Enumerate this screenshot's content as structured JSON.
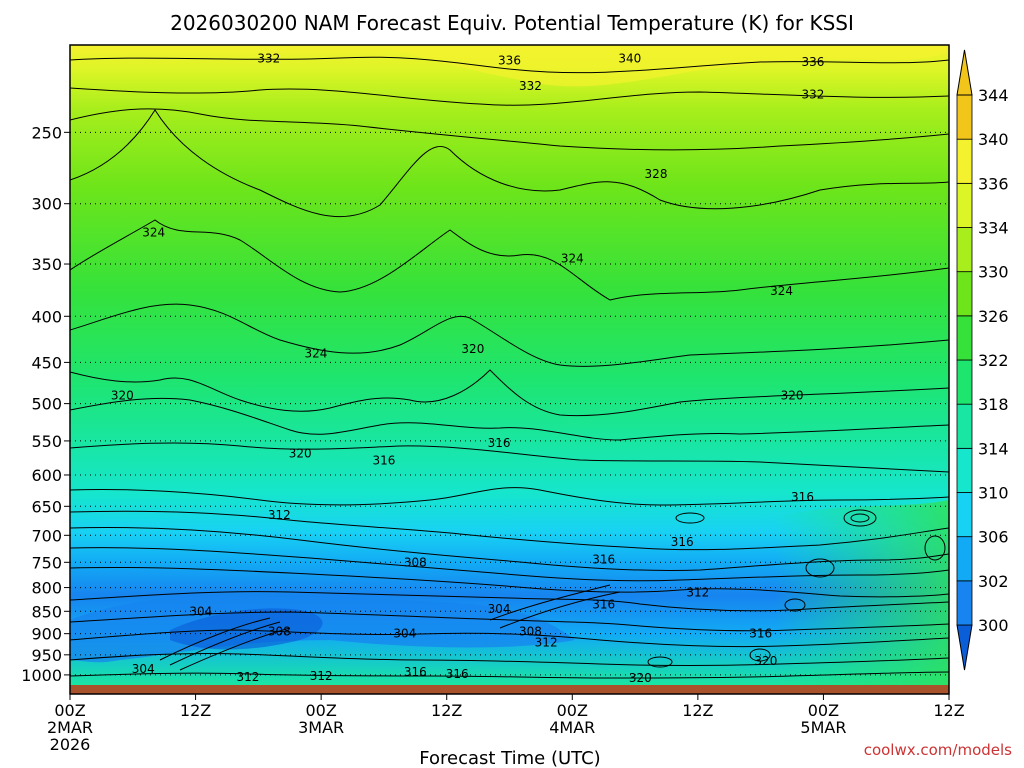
{
  "chart_data": {
    "type": "heatmap",
    "title": "2026030200 NAM Forecast Equiv. Potential Temperature (K) for KSSI",
    "xlabel": "Forecast Time (UTC)",
    "ylabel": "",
    "x_ticks": [
      {
        "hours": 0,
        "lines": [
          "00Z",
          "2MAR",
          "2026"
        ]
      },
      {
        "hours": 12,
        "lines": [
          "12Z"
        ]
      },
      {
        "hours": 24,
        "lines": [
          "00Z",
          "3MAR"
        ]
      },
      {
        "hours": 36,
        "lines": [
          "12Z"
        ]
      },
      {
        "hours": 48,
        "lines": [
          "00Z",
          "4MAR"
        ]
      },
      {
        "hours": 60,
        "lines": [
          "12Z"
        ]
      },
      {
        "hours": 72,
        "lines": [
          "00Z",
          "5MAR"
        ]
      },
      {
        "hours": 84,
        "lines": [
          "12Z"
        ]
      }
    ],
    "x_range_hours": [
      0,
      84
    ],
    "y_scale": "log-pressure",
    "y_range_hPa": [
      1050,
      200
    ],
    "y_ticks_hPa": [
      250,
      300,
      350,
      400,
      450,
      500,
      550,
      600,
      650,
      700,
      750,
      800,
      850,
      900,
      950,
      1000
    ],
    "grid": "dotted horizontal at pressure ticks",
    "colorbar": {
      "levels": [
        300,
        302,
        306,
        310,
        314,
        318,
        322,
        326,
        330,
        334,
        336,
        340,
        344
      ],
      "labels": [
        "300",
        "302",
        "306",
        "310",
        "314",
        "318",
        "322",
        "326",
        "330",
        "334",
        "336",
        "340",
        "344"
      ],
      "colors": [
        "#0a5fd8",
        "#1784ef",
        "#12aaf5",
        "#18d2f3",
        "#16e6cc",
        "#19e6a2",
        "#1ee56e",
        "#36e23a",
        "#6ee51a",
        "#a8ee1c",
        "#dcf526",
        "#f4f22e",
        "#f2c51a"
      ]
    },
    "contour_labels": [
      {
        "text": "332",
        "hours": 19,
        "hPa": 207
      },
      {
        "text": "336",
        "hours": 42,
        "hPa": 208
      },
      {
        "text": "340",
        "hours": 53.5,
        "hPa": 207
      },
      {
        "text": "336",
        "hours": 71,
        "hPa": 209
      },
      {
        "text": "332",
        "hours": 44,
        "hPa": 222
      },
      {
        "text": "332",
        "hours": 71,
        "hPa": 227
      },
      {
        "text": "328",
        "hours": 56,
        "hPa": 278
      },
      {
        "text": "324",
        "hours": 8,
        "hPa": 323
      },
      {
        "text": "324",
        "hours": 48,
        "hPa": 345
      },
      {
        "text": "324",
        "hours": 68,
        "hPa": 375
      },
      {
        "text": "324",
        "hours": 23.5,
        "hPa": 440
      },
      {
        "text": "320",
        "hours": 38.5,
        "hPa": 435
      },
      {
        "text": "320",
        "hours": 5,
        "hPa": 490
      },
      {
        "text": "320",
        "hours": 69,
        "hPa": 490
      },
      {
        "text": "320",
        "hours": 22,
        "hPa": 568
      },
      {
        "text": "316",
        "hours": 30,
        "hPa": 578
      },
      {
        "text": "316",
        "hours": 41,
        "hPa": 553
      },
      {
        "text": "316",
        "hours": 70,
        "hPa": 635
      },
      {
        "text": "312",
        "hours": 20,
        "hPa": 665
      },
      {
        "text": "316",
        "hours": 58.5,
        "hPa": 712
      },
      {
        "text": "308",
        "hours": 33,
        "hPa": 750
      },
      {
        "text": "316",
        "hours": 51,
        "hPa": 745
      },
      {
        "text": "312",
        "hours": 60,
        "hPa": 810
      },
      {
        "text": "304",
        "hours": 12.5,
        "hPa": 850
      },
      {
        "text": "304",
        "hours": 41,
        "hPa": 845
      },
      {
        "text": "316",
        "hours": 51,
        "hPa": 835
      },
      {
        "text": "308",
        "hours": 20,
        "hPa": 895
      },
      {
        "text": "304",
        "hours": 32,
        "hPa": 900
      },
      {
        "text": "308",
        "hours": 44,
        "hPa": 895
      },
      {
        "text": "312",
        "hours": 45.5,
        "hPa": 920
      },
      {
        "text": "316",
        "hours": 66,
        "hPa": 900
      },
      {
        "text": "320",
        "hours": 66.5,
        "hPa": 965
      },
      {
        "text": "304",
        "hours": 7,
        "hPa": 985
      },
      {
        "text": "312",
        "hours": 17,
        "hPa": 1005
      },
      {
        "text": "312",
        "hours": 24,
        "hPa": 1003
      },
      {
        "text": "316",
        "hours": 33,
        "hPa": 992
      },
      {
        "text": "316",
        "hours": 37,
        "hPa": 998
      },
      {
        "text": "320",
        "hours": 54.5,
        "hPa": 1008
      }
    ]
  },
  "credit": "coolwx.com/models"
}
